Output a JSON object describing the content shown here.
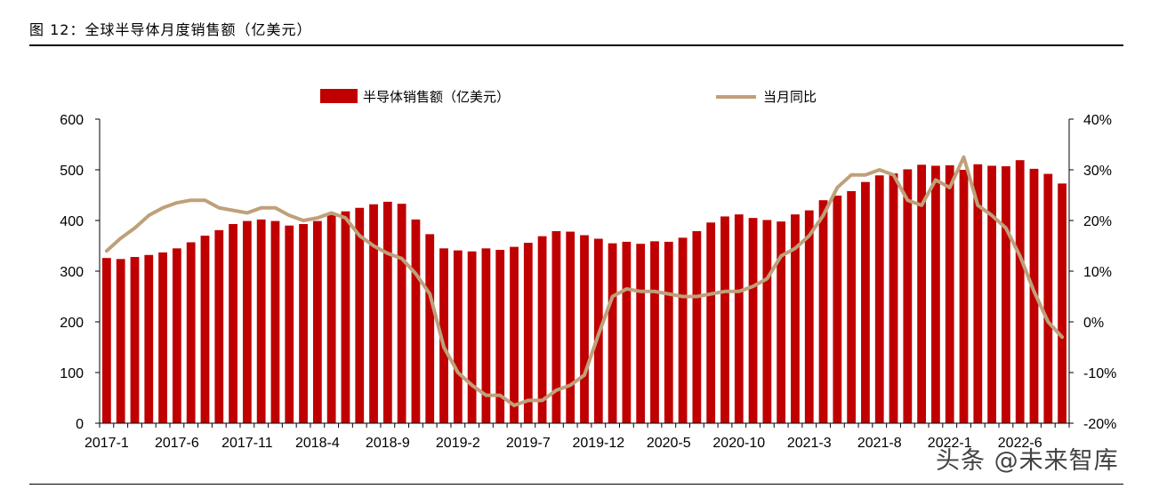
{
  "figure": {
    "title": "图 12：全球半导体月度销售额（亿美元）",
    "source_watermark": "头条 @未来智库"
  },
  "chart_data": {
    "type": "bar+line",
    "title": "全球半导体月度销售额（亿美元）",
    "legend": [
      "半导体销售额（亿美元）",
      "当月同比"
    ],
    "legend_placement": "top",
    "colors": {
      "bars": "#C00000",
      "line": "#BFA07A"
    },
    "x_tick_labels": [
      "2017-1",
      "2017-6",
      "2017-11",
      "2018-4",
      "2018-9",
      "2019-2",
      "2019-7",
      "2019-12",
      "2020-5",
      "2020-10",
      "2021-3",
      "2021-8",
      "2022-1",
      "2022-6"
    ],
    "left_axis": {
      "ylim": [
        0,
        600
      ],
      "ticks": [
        0,
        100,
        200,
        300,
        400,
        500,
        600
      ],
      "tick_labels": [
        "0",
        "100",
        "200",
        "300",
        "400",
        "500",
        "600"
      ]
    },
    "right_axis": {
      "ylim": [
        -20,
        40
      ],
      "ticks": [
        -20,
        -10,
        0,
        10,
        20,
        30,
        40
      ],
      "tick_labels": [
        "-20%",
        "-10%",
        "0%",
        "10%",
        "20%",
        "30%",
        "40%"
      ]
    },
    "months": [
      "2017-1",
      "2017-2",
      "2017-3",
      "2017-4",
      "2017-5",
      "2017-6",
      "2017-7",
      "2017-8",
      "2017-9",
      "2017-10",
      "2017-11",
      "2017-12",
      "2018-1",
      "2018-2",
      "2018-3",
      "2018-4",
      "2018-5",
      "2018-6",
      "2018-7",
      "2018-8",
      "2018-9",
      "2018-10",
      "2018-11",
      "2018-12",
      "2019-1",
      "2019-2",
      "2019-3",
      "2019-4",
      "2019-5",
      "2019-6",
      "2019-7",
      "2019-8",
      "2019-9",
      "2019-10",
      "2019-11",
      "2019-12",
      "2020-1",
      "2020-2",
      "2020-3",
      "2020-4",
      "2020-5",
      "2020-6",
      "2020-7",
      "2020-8",
      "2020-9",
      "2020-10",
      "2020-11",
      "2020-12",
      "2021-1",
      "2021-2",
      "2021-3",
      "2021-4",
      "2021-5",
      "2021-6",
      "2021-7",
      "2021-8",
      "2021-9",
      "2021-10",
      "2021-11",
      "2021-12",
      "2022-1",
      "2022-2",
      "2022-3",
      "2022-4",
      "2022-5",
      "2022-6",
      "2022-7",
      "2022-8",
      "2022-9"
    ],
    "series": [
      {
        "name": "半导体销售额（亿美元）",
        "type": "bar",
        "axis": "left",
        "values": [
          326,
          324,
          328,
          332,
          337,
          345,
          357,
          370,
          381,
          393,
          399,
          402,
          399,
          390,
          393,
          399,
          412,
          418,
          425,
          432,
          437,
          433,
          402,
          373,
          345,
          341,
          339,
          345,
          342,
          348,
          356,
          369,
          379,
          378,
          371,
          364,
          355,
          358,
          354,
          359,
          358,
          366,
          379,
          396,
          408,
          412,
          405,
          401,
          398,
          412,
          420,
          440,
          449,
          458,
          476,
          489,
          493,
          501,
          510,
          508,
          509,
          500,
          511,
          508,
          507,
          519,
          502,
          492,
          473
        ]
      },
      {
        "name": "当月同比",
        "type": "line",
        "axis": "right",
        "values": [
          14,
          16.5,
          18.5,
          21,
          22.5,
          23.5,
          24,
          24,
          22.5,
          22,
          21.5,
          22.5,
          22.5,
          21,
          20,
          20.5,
          21.5,
          20.5,
          17,
          15,
          13.5,
          12.5,
          9.5,
          5.5,
          -5,
          -10,
          -12.5,
          -14.5,
          -14.5,
          -16.5,
          -15.5,
          -15.5,
          -13.5,
          -12.5,
          -10.5,
          -2.5,
          5,
          6.5,
          6,
          6,
          5.5,
          5,
          5,
          5.5,
          6,
          6,
          7,
          8.5,
          13,
          14.5,
          17,
          21,
          26.5,
          29,
          29,
          30,
          29,
          24,
          23,
          28,
          26.5,
          32.5,
          23,
          21,
          18.5,
          13,
          6,
          0,
          -3
        ]
      }
    ]
  }
}
